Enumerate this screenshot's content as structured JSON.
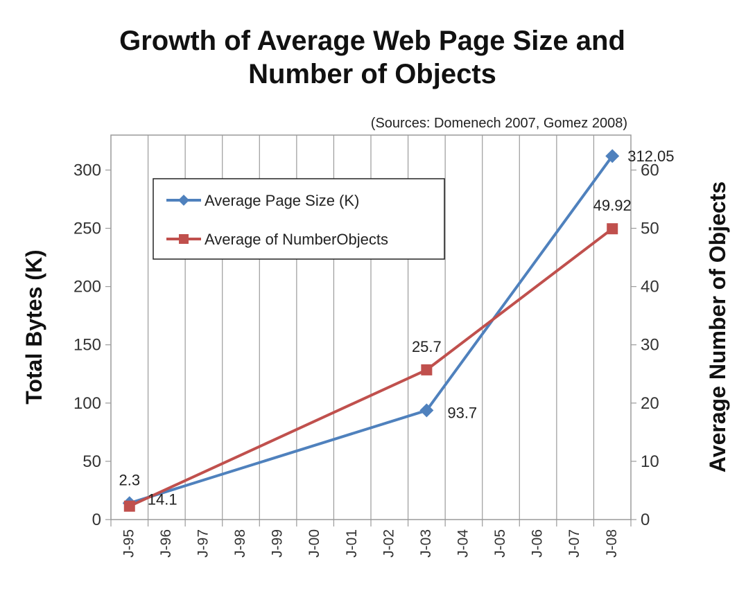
{
  "chart_data": {
    "type": "line",
    "title": [
      "Growth of Average Web Page Size and",
      "Number of Objects"
    ],
    "subtitle": "(Sources: Domenech 2007,  Gomez 2008)",
    "categories": [
      "J-95",
      "J-96",
      "J-97",
      "J-98",
      "J-99",
      "J-00",
      "J-01",
      "J-02",
      "J-03",
      "J-04",
      "J-05",
      "J-06",
      "J-07",
      "J-08"
    ],
    "y_left": {
      "label": "Total Bytes (K)",
      "range": [
        0,
        330
      ],
      "ticks": [
        0,
        50,
        100,
        150,
        200,
        250,
        300
      ]
    },
    "y_right": {
      "label": "Average Number of Objects",
      "range": [
        0,
        66
      ],
      "ticks": [
        0,
        10,
        20,
        30,
        40,
        50,
        60
      ]
    },
    "series": [
      {
        "name": "Average Page Size (K)",
        "axis": "left",
        "color": "#4f81bd",
        "marker": "diamond",
        "points": [
          {
            "x": "J-95",
            "y": 14.1,
            "label": "14.1"
          },
          {
            "x": "J-03",
            "y": 93.7,
            "label": "93.7"
          },
          {
            "x": "J-08",
            "y": 312.05,
            "label": "312.05"
          }
        ]
      },
      {
        "name": "Average of NumberObjects",
        "axis": "right",
        "color": "#c0504d",
        "marker": "square",
        "points": [
          {
            "x": "J-95",
            "y": 2.3,
            "label": "2.3"
          },
          {
            "x": "J-03",
            "y": 25.7,
            "label": "25.7"
          },
          {
            "x": "J-08",
            "y": 49.92,
            "label": "49.92"
          }
        ]
      }
    ],
    "grid": {
      "vertical": true,
      "horizontal": false
    },
    "legend": {
      "position": "top-left"
    }
  }
}
